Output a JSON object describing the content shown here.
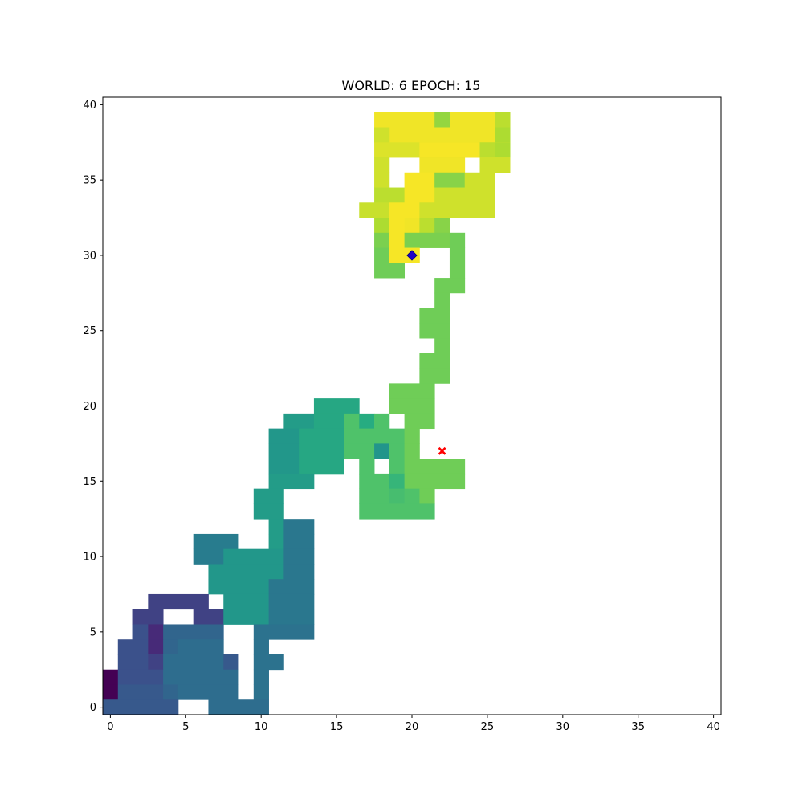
{
  "chart_data": {
    "type": "heatmap",
    "title": "WORLD: 6 EPOCH: 15",
    "xlabel": "",
    "ylabel": "",
    "xlim": [
      -0.5,
      40.5
    ],
    "ylim": [
      -0.5,
      40.5
    ],
    "x_ticks": [
      "0",
      "5",
      "10",
      "15",
      "20",
      "25",
      "30",
      "35",
      "40"
    ],
    "y_ticks": [
      "0",
      "5",
      "10",
      "15",
      "20",
      "25",
      "30",
      "35",
      "40"
    ],
    "colormap": "viridis",
    "grid": false,
    "markers": [
      {
        "name": "agent",
        "shape": "diamond",
        "x": 20,
        "y": 30,
        "color": "#1f00c8"
      },
      {
        "name": "goal",
        "shape": "x",
        "x": 22,
        "y": 17,
        "color": "#ff0000"
      }
    ],
    "rows": [
      {
        "y": 39,
        "segments": [
          [
            18,
            26,
            0.98
          ],
          [
            22,
            22,
            0.84
          ],
          [
            26,
            26,
            0.9
          ]
        ]
      },
      {
        "y": 38,
        "segments": [
          [
            18,
            26,
            0.98
          ],
          [
            18,
            18,
            0.93
          ],
          [
            26,
            26,
            0.88
          ]
        ]
      },
      {
        "y": 37,
        "segments": [
          [
            18,
            26,
            0.95
          ],
          [
            21,
            25,
            0.99
          ],
          [
            25,
            25,
            0.9
          ],
          [
            26,
            26,
            0.88
          ]
        ]
      },
      {
        "y": 36,
        "segments": [
          [
            18,
            18,
            0.93
          ],
          [
            21,
            23,
            0.98
          ],
          [
            25,
            26,
            0.93
          ]
        ]
      },
      {
        "y": 35,
        "segments": [
          [
            18,
            18,
            0.93
          ],
          [
            20,
            21,
            0.99
          ],
          [
            22,
            23,
            0.82
          ],
          [
            24,
            25,
            0.93
          ]
        ]
      },
      {
        "y": 34,
        "segments": [
          [
            18,
            19,
            0.9
          ],
          [
            20,
            21,
            0.99
          ],
          [
            22,
            25,
            0.93
          ]
        ]
      },
      {
        "y": 33,
        "segments": [
          [
            17,
            18,
            0.92
          ],
          [
            19,
            20,
            0.99
          ],
          [
            21,
            25,
            0.93
          ]
        ]
      },
      {
        "y": 32,
        "segments": [
          [
            18,
            18,
            0.88
          ],
          [
            19,
            19,
            0.99
          ],
          [
            20,
            20,
            0.98
          ],
          [
            21,
            21,
            0.9
          ],
          [
            22,
            22,
            0.82
          ]
        ]
      },
      {
        "y": 31,
        "segments": [
          [
            18,
            18,
            0.8
          ],
          [
            19,
            19,
            0.99
          ],
          [
            20,
            22,
            0.8
          ],
          [
            23,
            23,
            0.78
          ]
        ]
      },
      {
        "y": 30,
        "segments": [
          [
            18,
            18,
            0.78
          ],
          [
            19,
            20,
            0.99
          ],
          [
            23,
            23,
            0.78
          ]
        ]
      },
      {
        "y": 29,
        "segments": [
          [
            18,
            19,
            0.78
          ],
          [
            23,
            23,
            0.78
          ]
        ]
      },
      {
        "y": 28,
        "segments": [
          [
            22,
            23,
            0.78
          ]
        ]
      },
      {
        "y": 27,
        "segments": [
          [
            22,
            22,
            0.78
          ]
        ]
      },
      {
        "y": 26,
        "segments": [
          [
            21,
            22,
            0.78
          ]
        ]
      },
      {
        "y": 25,
        "segments": [
          [
            21,
            22,
            0.78
          ]
        ]
      },
      {
        "y": 24,
        "segments": [
          [
            22,
            22,
            0.78
          ]
        ]
      },
      {
        "y": 23,
        "segments": [
          [
            21,
            22,
            0.78
          ]
        ]
      },
      {
        "y": 22,
        "segments": [
          [
            21,
            22,
            0.78
          ]
        ]
      },
      {
        "y": 21,
        "segments": [
          [
            19,
            21,
            0.78
          ]
        ]
      },
      {
        "y": 20,
        "segments": [
          [
            14,
            16,
            0.6
          ],
          [
            19,
            21,
            0.78
          ]
        ]
      },
      {
        "y": 19,
        "segments": [
          [
            12,
            13,
            0.55
          ],
          [
            14,
            15,
            0.6
          ],
          [
            16,
            16,
            0.72
          ],
          [
            17,
            17,
            0.62
          ],
          [
            18,
            18,
            0.72
          ],
          [
            20,
            21,
            0.78
          ]
        ]
      },
      {
        "y": 18,
        "segments": [
          [
            11,
            12,
            0.53
          ],
          [
            13,
            15,
            0.6
          ],
          [
            16,
            19,
            0.72
          ],
          [
            20,
            20,
            0.78
          ]
        ]
      },
      {
        "y": 17,
        "segments": [
          [
            11,
            12,
            0.53
          ],
          [
            13,
            15,
            0.6
          ],
          [
            16,
            17,
            0.72
          ],
          [
            18,
            18,
            0.52
          ],
          [
            19,
            19,
            0.72
          ],
          [
            20,
            20,
            0.78
          ]
        ]
      },
      {
        "y": 16,
        "segments": [
          [
            11,
            12,
            0.53
          ],
          [
            13,
            15,
            0.6
          ],
          [
            17,
            17,
            0.72
          ],
          [
            19,
            19,
            0.72
          ],
          [
            20,
            23,
            0.78
          ]
        ]
      },
      {
        "y": 15,
        "segments": [
          [
            11,
            13,
            0.55
          ],
          [
            17,
            18,
            0.72
          ],
          [
            19,
            19,
            0.66
          ],
          [
            20,
            23,
            0.78
          ]
        ]
      },
      {
        "y": 14,
        "segments": [
          [
            10,
            11,
            0.55
          ],
          [
            17,
            18,
            0.72
          ],
          [
            19,
            19,
            0.7
          ],
          [
            20,
            20,
            0.72
          ],
          [
            21,
            21,
            0.78
          ]
        ]
      },
      {
        "y": 13,
        "segments": [
          [
            10,
            11,
            0.55
          ],
          [
            17,
            21,
            0.72
          ]
        ]
      },
      {
        "y": 12,
        "segments": [
          [
            11,
            11,
            0.55
          ],
          [
            12,
            13,
            0.4
          ]
        ]
      },
      {
        "y": 11,
        "segments": [
          [
            6,
            8,
            0.42
          ],
          [
            11,
            11,
            0.55
          ],
          [
            12,
            13,
            0.4
          ]
        ]
      },
      {
        "y": 10,
        "segments": [
          [
            6,
            7,
            0.42
          ],
          [
            8,
            11,
            0.53
          ],
          [
            12,
            13,
            0.4
          ]
        ]
      },
      {
        "y": 9,
        "segments": [
          [
            7,
            11,
            0.53
          ],
          [
            12,
            13,
            0.4
          ]
        ]
      },
      {
        "y": 8,
        "segments": [
          [
            7,
            11,
            0.53
          ],
          [
            11,
            13,
            0.4
          ]
        ]
      },
      {
        "y": 7,
        "segments": [
          [
            3,
            6,
            0.2
          ],
          [
            8,
            10,
            0.53
          ],
          [
            11,
            13,
            0.4
          ]
        ]
      },
      {
        "y": 6,
        "segments": [
          [
            2,
            3,
            0.2
          ],
          [
            6,
            7,
            0.2
          ],
          [
            8,
            10,
            0.53
          ],
          [
            11,
            13,
            0.4
          ]
        ]
      },
      {
        "y": 5,
        "segments": [
          [
            2,
            2,
            0.25
          ],
          [
            3,
            3,
            0.12
          ],
          [
            4,
            7,
            0.33
          ],
          [
            10,
            13,
            0.38
          ]
        ]
      },
      {
        "y": 4,
        "segments": [
          [
            1,
            2,
            0.25
          ],
          [
            3,
            3,
            0.12
          ],
          [
            4,
            4,
            0.33
          ],
          [
            5,
            7,
            0.36
          ],
          [
            10,
            10,
            0.38
          ]
        ]
      },
      {
        "y": 3,
        "segments": [
          [
            1,
            2,
            0.25
          ],
          [
            3,
            3,
            0.2
          ],
          [
            4,
            7,
            0.36
          ],
          [
            8,
            8,
            0.28
          ],
          [
            10,
            11,
            0.38
          ]
        ]
      },
      {
        "y": 2,
        "segments": [
          [
            0,
            0,
            0.0
          ],
          [
            1,
            3,
            0.25
          ],
          [
            4,
            7,
            0.36
          ],
          [
            8,
            8,
            0.36
          ],
          [
            10,
            10,
            0.38
          ]
        ]
      },
      {
        "y": 1,
        "segments": [
          [
            0,
            0,
            0.0
          ],
          [
            1,
            3,
            0.28
          ],
          [
            4,
            4,
            0.33
          ],
          [
            5,
            8,
            0.36
          ],
          [
            10,
            10,
            0.38
          ]
        ]
      },
      {
        "y": 0,
        "segments": [
          [
            0,
            4,
            0.28
          ],
          [
            7,
            10,
            0.36
          ]
        ]
      }
    ]
  }
}
